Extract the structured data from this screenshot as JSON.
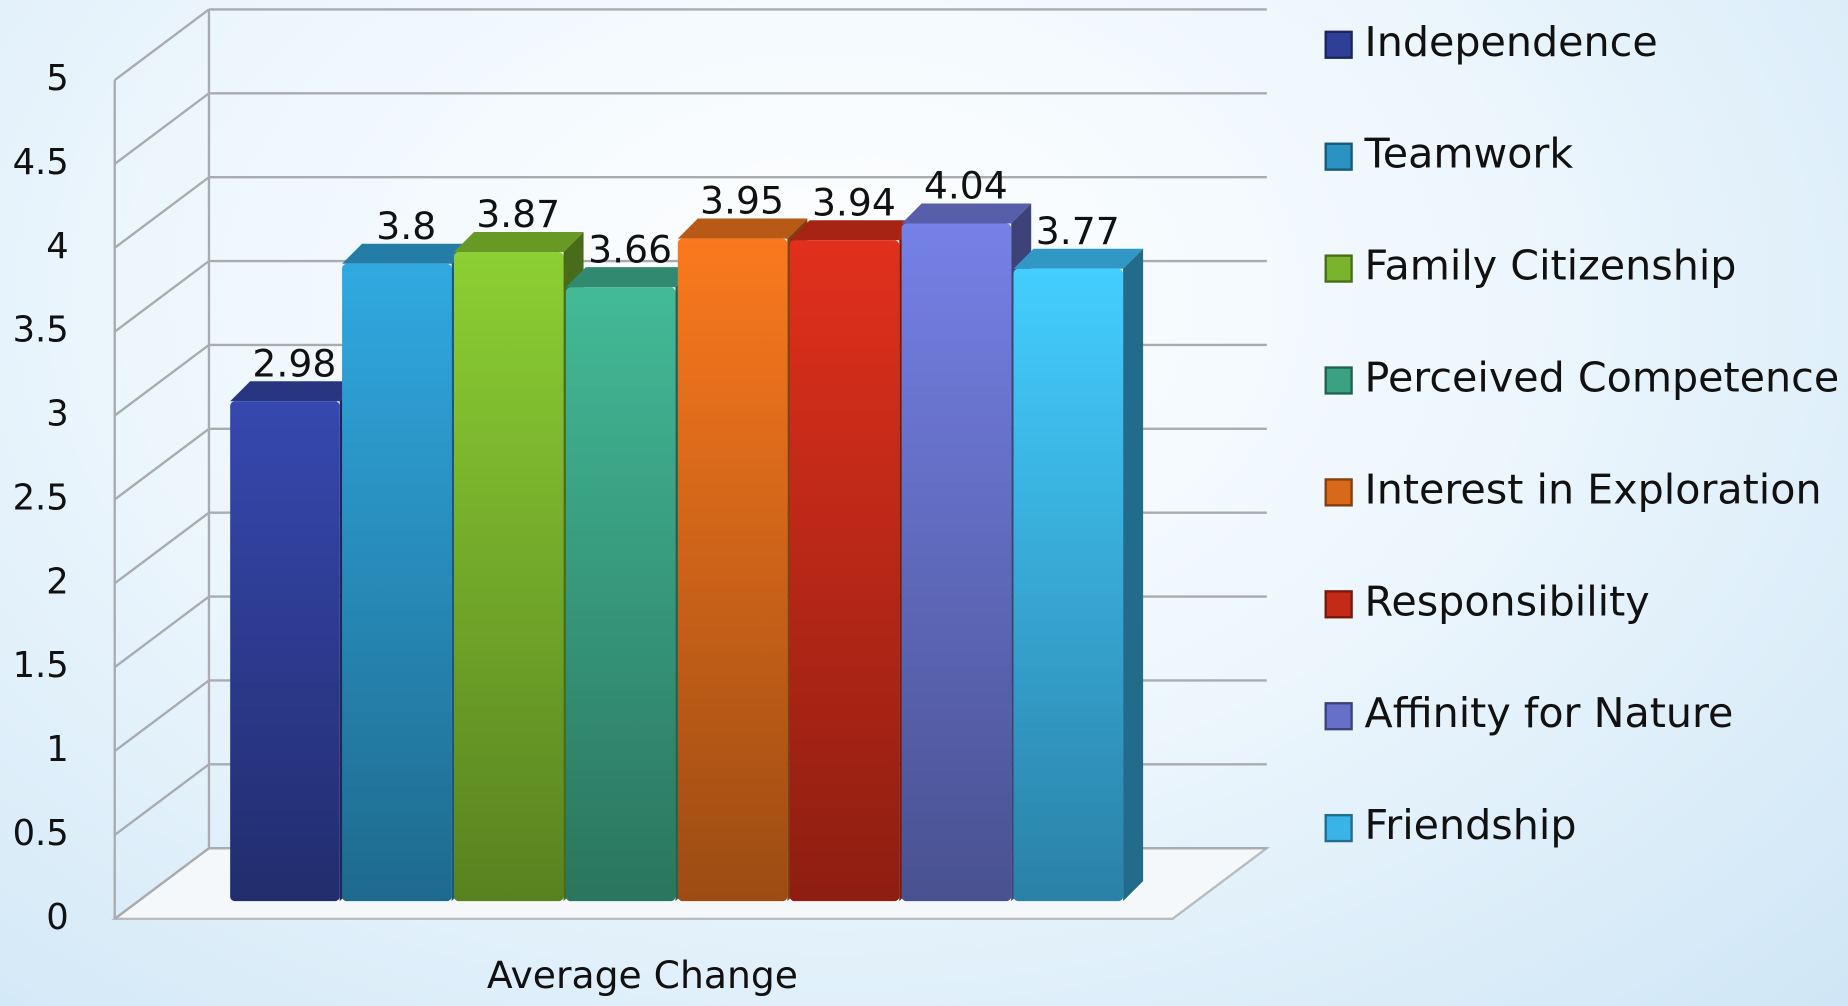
{
  "chart_data": {
    "type": "bar3d",
    "categories": [
      "Average Change"
    ],
    "series": [
      {
        "name": "Independence",
        "color": "#2f3f98",
        "values": [
          2.98
        ]
      },
      {
        "name": "Teamwork",
        "color": "#2a93c4",
        "values": [
          3.8
        ]
      },
      {
        "name": "Family Citizenship",
        "color": "#7ab42c",
        "values": [
          3.87
        ]
      },
      {
        "name": "Perceived Competence",
        "color": "#3aa283",
        "values": [
          3.66
        ]
      },
      {
        "name": "Interest in Exploration",
        "color": "#d9691a",
        "values": [
          3.95
        ]
      },
      {
        "name": "Responsibility",
        "color": "#c42a18",
        "values": [
          3.94
        ]
      },
      {
        "name": "Affinity for Nature",
        "color": "#6670c8",
        "values": [
          4.04
        ]
      },
      {
        "name": "Friendship",
        "color": "#3ab3e8",
        "values": [
          3.77
        ]
      }
    ],
    "ylim": [
      0,
      5
    ],
    "yticks": [
      0,
      0.5,
      1,
      1.5,
      2,
      2.5,
      3,
      3.5,
      4,
      4.5,
      5
    ],
    "grid": true,
    "legend": "right"
  }
}
